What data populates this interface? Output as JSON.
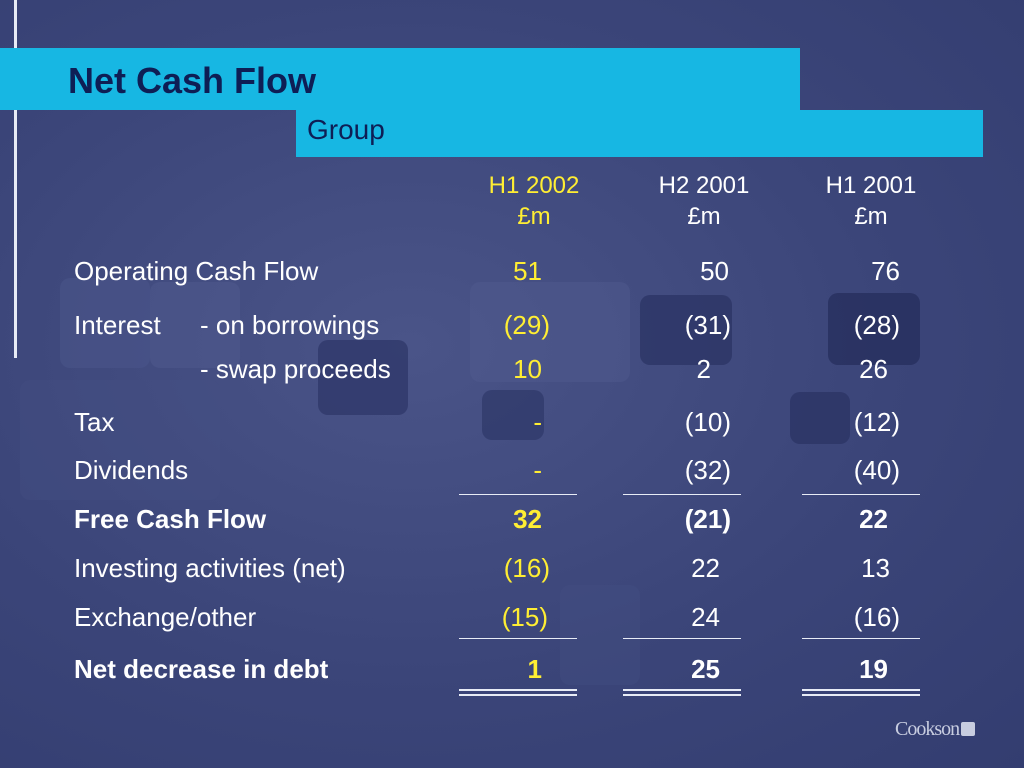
{
  "title": "Net Cash Flow",
  "subtitle": "Group",
  "columns": [
    {
      "period": "H1 2002",
      "unit": "£m"
    },
    {
      "period": "H2 2001",
      "unit": "£m"
    },
    {
      "period": "H1 2001",
      "unit": "£m"
    }
  ],
  "rows": {
    "operating": {
      "label": "Operating Cash Flow",
      "v": [
        "51",
        "50",
        "76"
      ]
    },
    "interest_borrow": {
      "label": "Interest",
      "sublabel": "- on borrowings",
      "v": [
        "(29)",
        "(31)",
        "(28)"
      ]
    },
    "interest_swap": {
      "sublabel": "- swap proceeds",
      "v": [
        "10",
        "2",
        "26"
      ]
    },
    "tax": {
      "label": "Tax",
      "v": [
        "-",
        "(10)",
        "(12)"
      ]
    },
    "dividends": {
      "label": "Dividends",
      "v": [
        "-",
        "(32)",
        "(40)"
      ]
    },
    "free_cash": {
      "label": "Free Cash Flow",
      "v": [
        "32",
        "(21)",
        "22"
      ]
    },
    "investing": {
      "label": "Investing activities (net)",
      "v": [
        "(16)",
        "22",
        "13"
      ]
    },
    "exchange": {
      "label": "Exchange/other",
      "v": [
        "(15)",
        "24",
        "(16)"
      ]
    },
    "net_decrease": {
      "label": "Net decrease in debt",
      "v": [
        "1",
        "25",
        "19"
      ]
    }
  },
  "logo": "Cookson",
  "colors": {
    "accent": "#17b7e3",
    "highlight": "#ffee33",
    "background": "#3a4478",
    "title_text": "#0e1e55"
  }
}
